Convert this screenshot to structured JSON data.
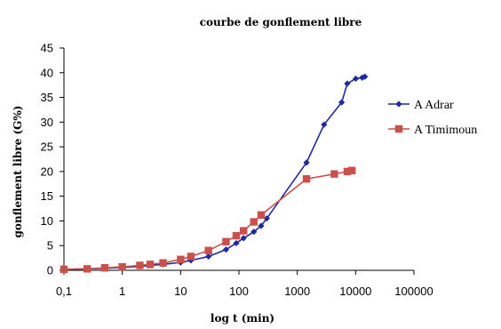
{
  "chart_data": {
    "type": "line",
    "title": "courbe de gonflement libre",
    "xlabel": "log t (min)",
    "ylabel": "gonflement libre (G%)",
    "x_scale": "log",
    "xlim": [
      0.1,
      100000
    ],
    "ylim": [
      0,
      45
    ],
    "x_ticks": [
      0.1,
      1,
      10,
      100,
      1000,
      10000,
      100000
    ],
    "x_tick_labels": [
      "0,1",
      "1",
      "10",
      "100",
      "1000",
      "10000",
      "100000"
    ],
    "y_ticks": [
      0,
      5,
      10,
      15,
      20,
      25,
      30,
      35,
      40,
      45
    ],
    "y_tick_labels": [
      "0",
      "5",
      "10",
      "15",
      "20",
      "25",
      "30",
      "35",
      "40",
      "45"
    ],
    "grid": false,
    "legend_position": "right",
    "series": [
      {
        "name": "A Adrar",
        "color": "#1f2a9c",
        "marker": "diamond",
        "x": [
          0.1,
          0.25,
          0.5,
          1,
          2,
          3,
          5,
          10,
          15,
          30,
          60,
          90,
          120,
          180,
          240,
          300,
          1440,
          2880,
          5760,
          7200,
          10080,
          12960,
          14400
        ],
        "y": [
          0.2,
          0.3,
          0.4,
          0.6,
          0.8,
          1.0,
          1.2,
          1.6,
          2.0,
          2.8,
          4.2,
          5.5,
          6.5,
          7.8,
          9.0,
          10.5,
          21.8,
          29.5,
          34.0,
          37.8,
          38.8,
          39.0,
          39.2
        ]
      },
      {
        "name": "A Timimoun",
        "color": "#c9504b",
        "marker": "square",
        "x": [
          0.1,
          0.25,
          0.5,
          1,
          2,
          3,
          5,
          10,
          15,
          30,
          60,
          90,
          120,
          180,
          240,
          1440,
          4320,
          7200,
          8640
        ],
        "y": [
          0.2,
          0.3,
          0.5,
          0.7,
          1.0,
          1.2,
          1.5,
          2.2,
          2.8,
          4.0,
          5.8,
          7.0,
          8.0,
          9.8,
          11.2,
          18.5,
          19.5,
          20.0,
          20.2
        ]
      }
    ]
  }
}
